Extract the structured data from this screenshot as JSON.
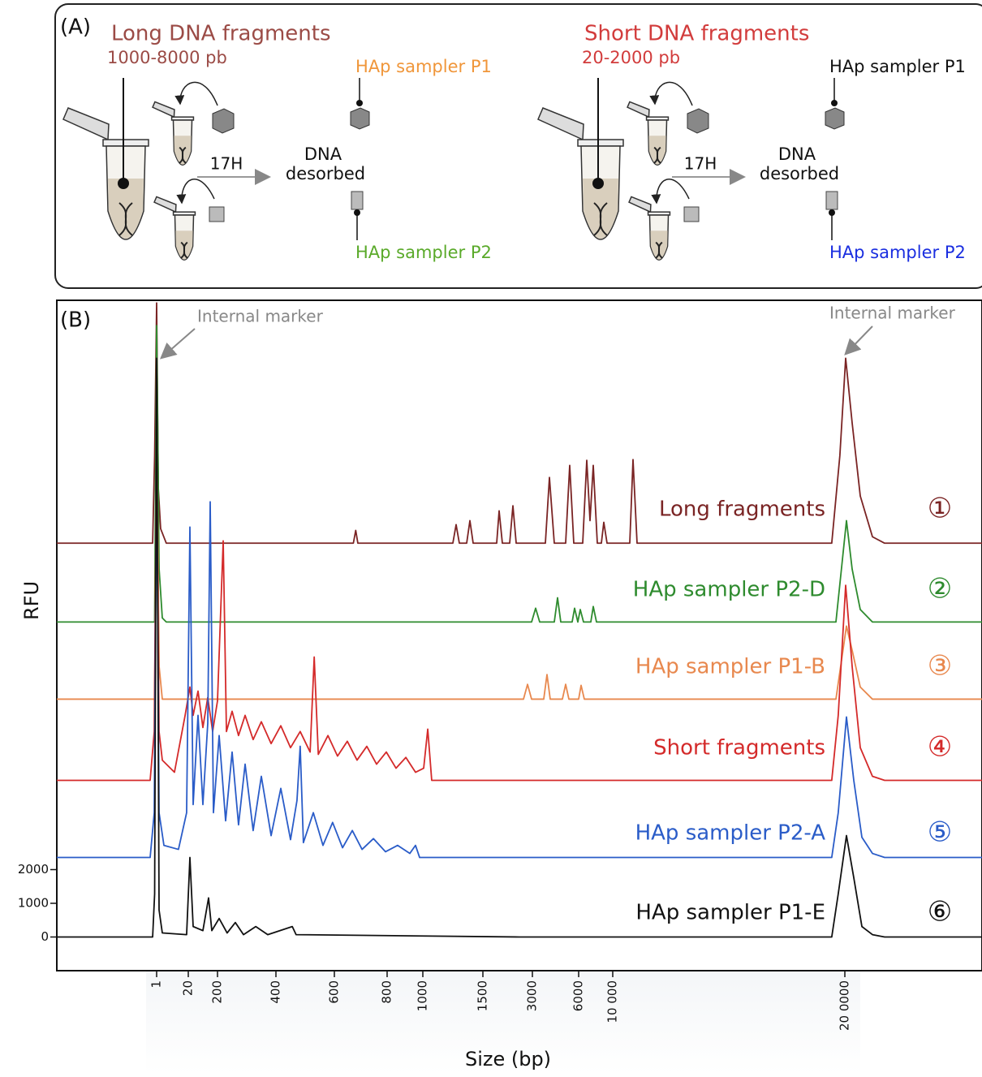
{
  "panel_a": {
    "label": "(A)",
    "left": {
      "title": "Long DNA fragments",
      "range": "1000-8000 pb",
      "sampler_1": "HAp sampler P1",
      "time": "17H",
      "result": [
        "DNA",
        "desorbed"
      ],
      "sampler_2": "HAp sampler P2"
    },
    "right": {
      "title": "Short DNA fragments",
      "range": "20-2000 pb",
      "sampler_1": "HAp sampler P1",
      "time": "17H",
      "result": [
        "DNA",
        "desorbed"
      ],
      "sampler_2": "HAp sampler P2"
    }
  },
  "chart_data": {
    "type": "line",
    "panel_label": "(B)",
    "xlabel": "Size (bp)",
    "ylabel": "RFU",
    "xlim": [
      0,
      300000
    ],
    "xticks": [
      1,
      20,
      200,
      400,
      600,
      800,
      1000,
      1500,
      3000,
      6000,
      {
        "value": 10000,
        "label": "10 000"
      },
      {
        "value": 200000,
        "label": "20 0000"
      }
    ],
    "ylim": [
      -1000,
      18900
    ],
    "yticks": [
      0,
      1000,
      2000
    ],
    "annotations": [
      {
        "text": "Internal marker"
      },
      {
        "text": "Internal marker"
      }
    ],
    "series": [
      {
        "name": "Long fragments",
        "marker": "①",
        "color": "#7a2424",
        "x": [
          0,
          0.96,
          0.98,
          1,
          2,
          3.4,
          6.8,
          672,
          681,
          689,
          1250,
          1277,
          1304,
          1365,
          1392,
          1419,
          1918,
          1992,
          2090,
          2312,
          2410,
          2509,
          3842,
          4105,
          4420,
          5157,
          5420,
          5684,
          6476,
          6952,
          7333,
          7714,
          8190,
          8666,
          8951,
          9332,
          23944,
          26600,
          29920,
          189280,
          195920,
          200592,
          205328,
          211248,
          220128,
          229008,
          300000
        ],
        "values": [
          11690,
          11690,
          14290,
          18820,
          13330,
          12120,
          11690,
          11690,
          12070,
          11690,
          11690,
          12240,
          11690,
          11690,
          12360,
          11690,
          11690,
          12650,
          11690,
          11690,
          12800,
          11690,
          11690,
          13640,
          11690,
          11690,
          14000,
          11690,
          11690,
          14150,
          12360,
          14000,
          11690,
          11690,
          12310,
          11690,
          11690,
          14170,
          11690,
          11690,
          14290,
          17180,
          15260,
          13090,
          11880,
          11690,
          11690
        ]
      },
      {
        "name": "HAp sampler P2-D",
        "marker": "②",
        "color": "#2e8b2e",
        "x": [
          0,
          0.98,
          1,
          2.5,
          4.4,
          6.8,
          2976,
          3210,
          3473,
          4420,
          4631,
          4841,
          5578,
          5736,
          5947,
          6190,
          6571,
          7428,
          7714,
          8095,
          192696,
          201184,
          205328,
          211248,
          220128,
          300000
        ],
        "values": [
          9350,
          9350,
          18150,
          10920,
          9470,
          9350,
          9350,
          9760,
          9350,
          9350,
          10070,
          9350,
          9350,
          9760,
          9350,
          9720,
          9350,
          9350,
          9810,
          9350,
          9350,
          12360,
          10920,
          9720,
          9350,
          9350
        ]
      },
      {
        "name": "HAp sampler P1-B",
        "marker": "③",
        "color": "#e8884e",
        "x": [
          0,
          0.98,
          1,
          2.5,
          4.4,
          2730,
          2853,
          2976,
          3736,
          3947,
          4157,
          4946,
          5157,
          5368,
          6000,
          6286,
          6666,
          192696,
          201184,
          205328,
          211248,
          220128,
          300000
        ],
        "values": [
          7060,
          7060,
          15260,
          8030,
          7060,
          7060,
          7500,
          7060,
          7060,
          7790,
          7060,
          7060,
          7500,
          7060,
          7060,
          7470,
          7060,
          7060,
          9230,
          8510,
          7420,
          7060,
          7060
        ]
      },
      {
        "name": "Short fragments",
        "marker": "④",
        "color": "#d42a2a",
        "x": [
          0,
          0.935,
          0.976,
          1,
          2.46,
          4.41,
          11.7,
          18.1,
          30,
          50,
          80,
          110,
          140,
          170,
          200,
          219.5,
          230.6,
          250,
          272,
          294.5,
          322,
          350,
          383.5,
          416.7,
          450,
          483,
          517,
          531,
          545,
          578,
          612,
          649,
          686,
          723,
          760,
          797,
          850,
          905,
          959,
          1007,
          1041,
          1074,
          189280,
          194592,
          200592,
          205328,
          211248,
          220128,
          229008,
          300000
        ],
        "values": [
          4650,
          4650,
          6100,
          14290,
          6100,
          5250,
          4890,
          6580,
          7420,
          6580,
          7300,
          6220,
          7110,
          6100,
          7010,
          11760,
          6100,
          6700,
          5980,
          6580,
          5860,
          6390,
          5740,
          6270,
          5620,
          6100,
          5490,
          8310,
          5420,
          5980,
          5370,
          5810,
          5250,
          5660,
          5130,
          5490,
          5010,
          5330,
          4890,
          5010,
          6170,
          4650,
          4650,
          6580,
          10440,
          8030,
          5620,
          4770,
          4650,
          4650
        ]
      },
      {
        "name": "HAp sampler P2-A",
        "marker": "⑤",
        "color": "#2a5cc8",
        "x": [
          0,
          0.935,
          0.976,
          1,
          2.46,
          5.38,
          14.1,
          19.0,
          30,
          50,
          80,
          110,
          140,
          155,
          175,
          205.6,
          227.8,
          250,
          272,
          294.5,
          322,
          350,
          383.5,
          416.7,
          450,
          472,
          483,
          494,
          528,
          561,
          594,
          631,
          668,
          705,
          748,
          794,
          859,
          927,
          959,
          982,
          189280,
          194592,
          201184,
          206512,
          212432,
          220128,
          229008,
          300000
        ],
        "values": [
          2360,
          2360,
          3690,
          14290,
          3690,
          2720,
          2600,
          3690,
          12170,
          3930,
          6580,
          3930,
          6340,
          12920,
          3690,
          5980,
          3450,
          5490,
          3330,
          5130,
          3160,
          4770,
          3010,
          4410,
          2890,
          4050,
          5660,
          2800,
          3690,
          2720,
          3400,
          2650,
          3160,
          2600,
          2920,
          2530,
          2720,
          2480,
          2720,
          2360,
          2360,
          3690,
          6530,
          4650,
          2960,
          2480,
          2360,
          2360
        ]
      },
      {
        "name": "HAp sampler P1-E",
        "marker": "⑥",
        "color": "#111111",
        "x": [
          0,
          0.96,
          0.98,
          1,
          2.46,
          4.41,
          19.0,
          30,
          50,
          110,
          145,
          165,
          205.6,
          233,
          261,
          289,
          331,
          372,
          414,
          456,
          469,
          2607,
          189280,
          194592,
          201184,
          206512,
          212432,
          220128,
          229008,
          300000
        ],
        "values": [
          0,
          0,
          1280,
          17180,
          800,
          120,
          70,
          2360,
          310,
          190,
          1160,
          190,
          550,
          120,
          430,
          70,
          310,
          70,
          190,
          310,
          70,
          0,
          0,
          1280,
          3010,
          1760,
          310,
          70,
          0,
          0
        ]
      }
    ]
  }
}
